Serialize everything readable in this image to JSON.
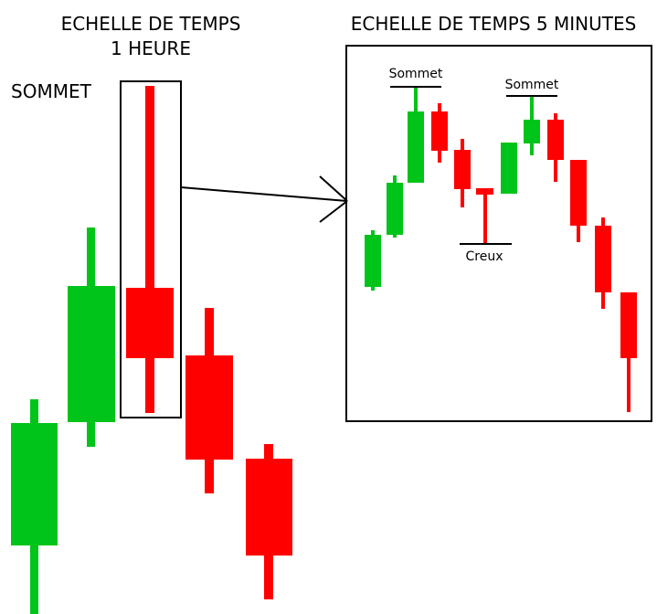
{
  "hourly": {
    "title": [
      "ECHELLE DE TEMPS",
      "1 HEURE"
    ],
    "label": "SOMMET"
  },
  "five_minutes": {
    "title": "ECHELLE DE TEMPS 5 MINUTES",
    "peaks": [
      "Sommet",
      "Sommet"
    ],
    "trough": "Creux"
  }
}
